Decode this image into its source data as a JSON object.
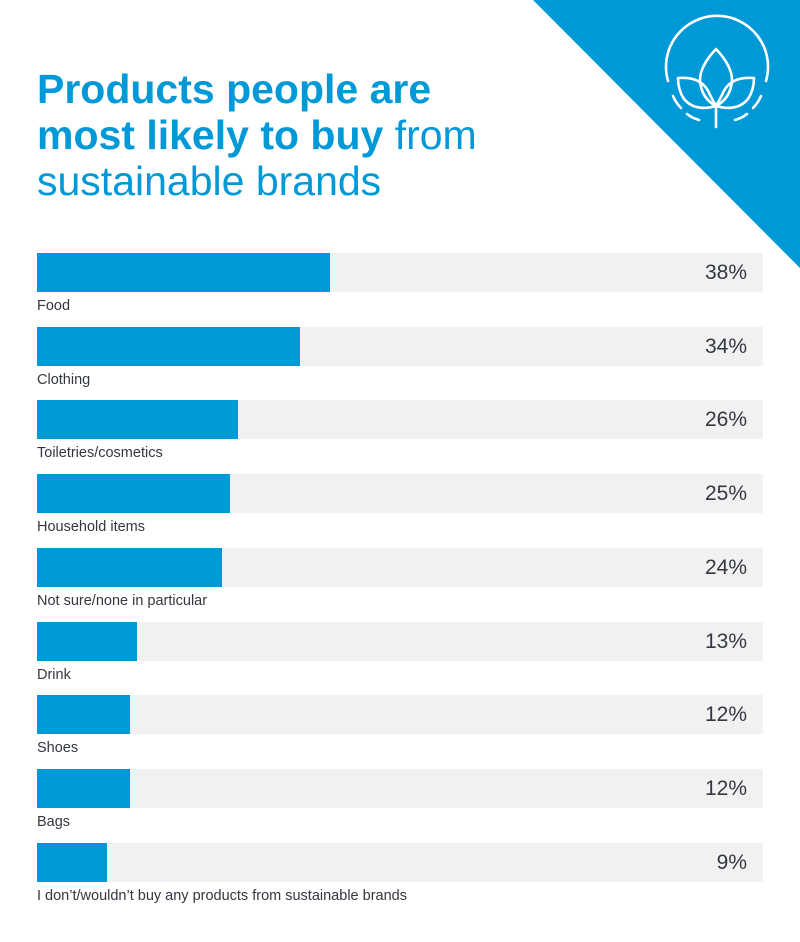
{
  "title": {
    "bold": "Products people are most likely to buy",
    "light": " from sustainable brands"
  },
  "icon": "sprouting-plant-icon",
  "colors": {
    "accent": "#0099d8",
    "track": "#f1f1f1",
    "text": "#333740"
  },
  "chart_data": {
    "type": "bar",
    "orientation": "horizontal",
    "title": "Products people are most likely to buy from sustainable brands",
    "xlabel": "",
    "ylabel": "",
    "unit": "%",
    "grid": false,
    "legend": "none",
    "xlim": [
      0,
      94
    ],
    "categories": [
      "Food",
      "Clothing",
      "Toiletries/cosmetics",
      "Household items",
      "Not sure/none in particular",
      "Drink",
      "Shoes",
      "Bags",
      "I don’t/wouldn’t buy any products from sustainable brands"
    ],
    "values": [
      38,
      34,
      26,
      25,
      24,
      13,
      12,
      12,
      9
    ],
    "value_labels": [
      "38%",
      "34%",
      "26%",
      "25%",
      "24%",
      "13%",
      "12%",
      "12%",
      "9%"
    ]
  }
}
